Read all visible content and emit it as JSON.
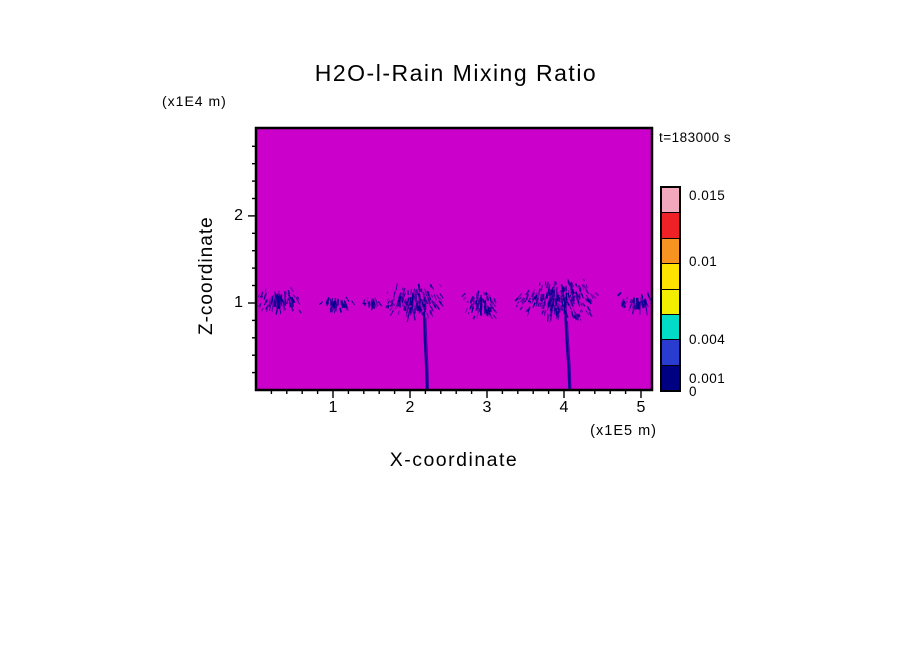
{
  "chart_data": {
    "type": "heatmap",
    "title": "H2O-l-Rain Mixing Ratio",
    "time_label": "t=183000 s",
    "xlabel": "X-coordinate",
    "x_units_label": "(x1E5 m)",
    "ylabel": "Z-coordinate",
    "y_units_label": "(x1E4 m)",
    "xlim": [
      0,
      5.143
    ],
    "ylim": [
      0,
      3.01
    ],
    "x_ticks": [
      1,
      2,
      3,
      4,
      5
    ],
    "y_ticks": [
      1,
      2
    ],
    "grid": false,
    "background_value": 0,
    "background_color": "#cb00cb",
    "feature_color": "#000090",
    "colorbar": {
      "position": "right",
      "vmax": 0.0158,
      "labels": [
        {
          "text": "0.015",
          "value": 0.015
        },
        {
          "text": "0.01",
          "value": 0.01
        },
        {
          "text": "0.004",
          "value": 0.004
        },
        {
          "text": "0.001",
          "value": 0.001
        },
        {
          "text": "0",
          "value": 0
        }
      ],
      "segments_top_to_bottom": [
        "#f2a7bd",
        "#ee2226",
        "#f79320",
        "#ffe300",
        "#f2ee00",
        "#00dcc5",
        "#2a3cd0",
        "#000082"
      ]
    },
    "rain_features": [
      {
        "x": 0.28,
        "z": 1.04,
        "w": 0.58,
        "h": 0.3,
        "n": 95
      },
      {
        "x": 1.05,
        "z": 1.02,
        "w": 0.4,
        "h": 0.16,
        "n": 40
      },
      {
        "x": 1.51,
        "z": 1.02,
        "w": 0.24,
        "h": 0.12,
        "n": 22
      },
      {
        "x": 2.05,
        "z": 1.05,
        "w": 0.82,
        "h": 0.42,
        "n": 155,
        "shaft": {
          "x_top": 2.18,
          "x_bottom": 2.22,
          "z_top": 0.9
        }
      },
      {
        "x": 2.92,
        "z": 1.0,
        "w": 0.46,
        "h": 0.34,
        "n": 80
      },
      {
        "x": 3.9,
        "z": 1.06,
        "w": 1.08,
        "h": 0.5,
        "n": 240,
        "shaft": {
          "x_top": 4.02,
          "x_bottom": 4.07,
          "z_top": 0.86
        }
      },
      {
        "x": 4.98,
        "z": 1.02,
        "w": 0.52,
        "h": 0.22,
        "n": 62
      }
    ]
  }
}
